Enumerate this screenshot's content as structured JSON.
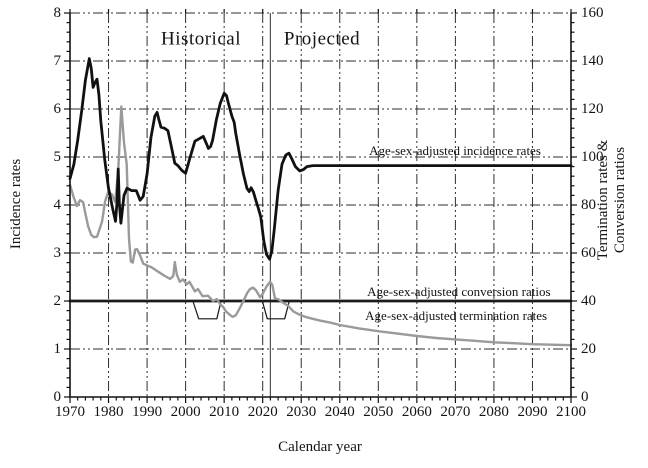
{
  "chart_data": {
    "type": "line",
    "title": "",
    "xlabel": "Calendar year",
    "ylabel_left": "Incidence rates",
    "ylabel_right_line1": "Termination rates &",
    "ylabel_right_line2": "Conversion ratios",
    "axes": {
      "x": {
        "min": 1970,
        "max": 2100,
        "major_ticks": [
          1970,
          1980,
          1990,
          2000,
          2010,
          2020,
          2030,
          2040,
          2050,
          2060,
          2070,
          2080,
          2090,
          2100
        ],
        "minor_step": 2
      },
      "y_left": {
        "min": 0,
        "max": 8,
        "major_ticks": [
          0,
          1,
          2,
          3,
          4,
          5,
          6,
          7,
          8
        ],
        "minor_step": 0.2
      },
      "y_right": {
        "min": 0,
        "max": 160,
        "major_ticks": [
          0,
          20,
          40,
          60,
          80,
          100,
          120,
          140,
          160
        ],
        "minor_step": 4
      }
    },
    "grid": {
      "on": true,
      "color": "#2e2e2e",
      "style": "dash-dot-dot"
    },
    "divider": {
      "year": 2022,
      "color": "#555555"
    },
    "region_labels": [
      {
        "text": "Historical",
        "year": 2004,
        "value": 7.44
      },
      {
        "text": "Projected",
        "year": 2035.4,
        "value": 7.44
      }
    ],
    "annotations": [
      {
        "text": "Age-sex-adjusted incidence rates",
        "year": 2069.9,
        "value": 5.13
      },
      {
        "text": "Age-sex-adjusted conversion ratios",
        "year": 2070.9,
        "value": 2.19
      },
      {
        "text": "Age-sex-adjusted termination rates",
        "year": 2070.2,
        "value": 1.69
      }
    ],
    "series": [
      {
        "name": "Age-sex-adjusted conversion ratios (dip segments)",
        "color": "#141414",
        "width": 1.2,
        "segments": [
          [
            [
              2001.9,
              2.0
            ],
            [
              2003.4,
              1.63
            ],
            [
              2008.1,
              1.63
            ],
            [
              2009.2,
              2.0
            ]
          ],
          [
            [
              2019.9,
              2.0
            ],
            [
              2021.2,
              1.63
            ],
            [
              2025.7,
              1.63
            ],
            [
              2026.9,
              2.0
            ]
          ]
        ]
      },
      {
        "name": "Age-sex-adjusted conversion ratios",
        "color": "#1c1c1c",
        "width": 2.8,
        "points": [
          [
            1970,
            2.0
          ],
          [
            2100,
            2.0
          ]
        ]
      },
      {
        "name": "Age-sex-adjusted termination rates",
        "color": "#9a9a9a",
        "width": 2.4,
        "points": [
          [
            1970,
            4.42
          ],
          [
            1970.9,
            4.17
          ],
          [
            1971.8,
            3.98
          ],
          [
            1972.6,
            4.1
          ],
          [
            1973.4,
            4.06
          ],
          [
            1974,
            3.82
          ],
          [
            1974.7,
            3.56
          ],
          [
            1975.5,
            3.38
          ],
          [
            1976.2,
            3.33
          ],
          [
            1977,
            3.34
          ],
          [
            1978.3,
            3.65
          ],
          [
            1979.1,
            4.08
          ],
          [
            1979.9,
            4.27
          ],
          [
            1980.9,
            4.22
          ],
          [
            1981.7,
            4.06
          ],
          [
            1982.5,
            4.7
          ],
          [
            1983.3,
            6.05
          ],
          [
            1984,
            5.3
          ],
          [
            1984.7,
            4.85
          ],
          [
            1985.3,
            3.3
          ],
          [
            1985.8,
            2.82
          ],
          [
            1986.3,
            2.8
          ],
          [
            1986.9,
            3.07
          ],
          [
            1987.4,
            3.08
          ],
          [
            1988.2,
            2.95
          ],
          [
            1989,
            2.78
          ],
          [
            1990,
            2.74
          ],
          [
            1991.2,
            2.7
          ],
          [
            1992.5,
            2.63
          ],
          [
            1993.5,
            2.58
          ],
          [
            1994.6,
            2.52
          ],
          [
            1996,
            2.46
          ],
          [
            1996.8,
            2.52
          ],
          [
            1997.2,
            2.81
          ],
          [
            1997.7,
            2.55
          ],
          [
            1998.5,
            2.4
          ],
          [
            1999.3,
            2.45
          ],
          [
            2000.3,
            2.35
          ],
          [
            2001,
            2.4
          ],
          [
            2002.4,
            2.2
          ],
          [
            2003.2,
            2.25
          ],
          [
            2004.4,
            2.1
          ],
          [
            2005.8,
            2.11
          ],
          [
            2007.1,
            2.0
          ],
          [
            2008.1,
            2.04
          ],
          [
            2009,
            1.93
          ],
          [
            2009.7,
            1.88
          ],
          [
            2010.5,
            1.78
          ],
          [
            2011.5,
            1.71
          ],
          [
            2012.2,
            1.67
          ],
          [
            2013,
            1.7
          ],
          [
            2014.1,
            1.86
          ],
          [
            2015,
            2.0
          ],
          [
            2016,
            2.17
          ],
          [
            2016.7,
            2.25
          ],
          [
            2017.5,
            2.28
          ],
          [
            2018.3,
            2.22
          ],
          [
            2019.3,
            2.08
          ],
          [
            2020,
            2.15
          ],
          [
            2021,
            2.3
          ],
          [
            2021.9,
            2.4
          ],
          [
            2022.5,
            2.34
          ],
          [
            2023.2,
            2.05
          ],
          [
            2024,
            2.04
          ],
          [
            2025,
            1.98
          ],
          [
            2026.6,
            1.9
          ],
          [
            2028,
            1.78
          ],
          [
            2029.7,
            1.71
          ],
          [
            2031,
            1.67
          ],
          [
            2033,
            1.63
          ],
          [
            2035,
            1.59
          ],
          [
            2037.5,
            1.55
          ],
          [
            2040,
            1.5
          ],
          [
            2045,
            1.43
          ],
          [
            2050,
            1.37
          ],
          [
            2055,
            1.32
          ],
          [
            2060,
            1.27
          ],
          [
            2065,
            1.23
          ],
          [
            2070,
            1.2
          ],
          [
            2075,
            1.17
          ],
          [
            2080,
            1.14
          ],
          [
            2085,
            1.12
          ],
          [
            2090,
            1.1
          ],
          [
            2095,
            1.09
          ],
          [
            2100,
            1.08
          ]
        ]
      },
      {
        "name": "Age-sex-adjusted incidence rates",
        "color": "#111111",
        "width": 2.8,
        "points": [
          [
            1970,
            4.55
          ],
          [
            1971,
            4.85
          ],
          [
            1972,
            5.35
          ],
          [
            1973,
            5.95
          ],
          [
            1974,
            6.6
          ],
          [
            1975,
            7.05
          ],
          [
            1975.5,
            6.85
          ],
          [
            1976,
            6.45
          ],
          [
            1976.5,
            6.55
          ],
          [
            1977,
            6.62
          ],
          [
            1977.5,
            6.3
          ],
          [
            1978,
            5.75
          ],
          [
            1979,
            4.95
          ],
          [
            1980,
            4.35
          ],
          [
            1981,
            3.95
          ],
          [
            1981.8,
            3.66
          ],
          [
            1982.2,
            4.05
          ],
          [
            1982.5,
            4.75
          ],
          [
            1982.8,
            4.05
          ],
          [
            1983.2,
            3.62
          ],
          [
            1984,
            4.2
          ],
          [
            1984.8,
            4.35
          ],
          [
            1986,
            4.3
          ],
          [
            1987.2,
            4.3
          ],
          [
            1988.2,
            4.1
          ],
          [
            1989,
            4.18
          ],
          [
            1990,
            4.65
          ],
          [
            1991,
            5.4
          ],
          [
            1992,
            5.85
          ],
          [
            1992.6,
            5.93
          ],
          [
            1993,
            5.8
          ],
          [
            1993.6,
            5.62
          ],
          [
            1994.5,
            5.6
          ],
          [
            1995.4,
            5.55
          ],
          [
            1996.2,
            5.25
          ],
          [
            1997.2,
            4.87
          ],
          [
            1998,
            4.82
          ],
          [
            1999,
            4.72
          ],
          [
            2000,
            4.66
          ],
          [
            2001,
            4.95
          ],
          [
            2002.4,
            5.33
          ],
          [
            2003.5,
            5.38
          ],
          [
            2004.6,
            5.43
          ],
          [
            2005.4,
            5.28
          ],
          [
            2005.9,
            5.18
          ],
          [
            2006.5,
            5.22
          ],
          [
            2007,
            5.35
          ],
          [
            2008,
            5.78
          ],
          [
            2009,
            6.12
          ],
          [
            2010,
            6.33
          ],
          [
            2010.6,
            6.28
          ],
          [
            2011,
            6.15
          ],
          [
            2012,
            5.85
          ],
          [
            2012.6,
            5.72
          ],
          [
            2013,
            5.5
          ],
          [
            2014,
            5.05
          ],
          [
            2015,
            4.65
          ],
          [
            2015.9,
            4.35
          ],
          [
            2016.5,
            4.28
          ],
          [
            2017,
            4.36
          ],
          [
            2017.6,
            4.27
          ],
          [
            2018.3,
            4.08
          ],
          [
            2018.8,
            3.95
          ],
          [
            2019.5,
            3.75
          ],
          [
            2020.3,
            3.25
          ],
          [
            2021,
            2.97
          ],
          [
            2021.8,
            2.87
          ],
          [
            2022.4,
            3.05
          ],
          [
            2023,
            3.5
          ],
          [
            2024,
            4.3
          ],
          [
            2025,
            4.85
          ],
          [
            2026,
            5.04
          ],
          [
            2026.8,
            5.08
          ],
          [
            2027.5,
            4.97
          ],
          [
            2028.5,
            4.8
          ],
          [
            2029.6,
            4.71
          ],
          [
            2030.6,
            4.74
          ],
          [
            2031.5,
            4.8
          ],
          [
            2033,
            4.82
          ],
          [
            2100,
            4.82
          ]
        ]
      }
    ]
  }
}
